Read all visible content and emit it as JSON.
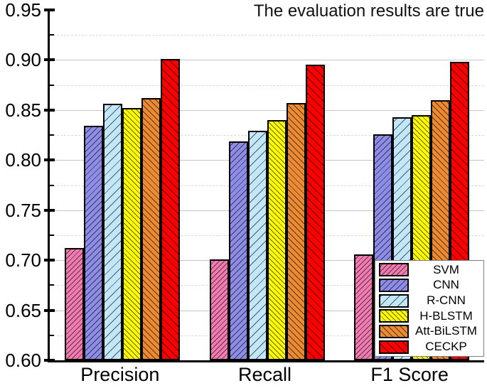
{
  "chart_data": {
    "type": "bar",
    "title": "The evaluation results are true",
    "categories": [
      "Precision",
      "Recall",
      "F1 Score"
    ],
    "series": [
      {
        "name": "SVM",
        "color": "#F27CB1",
        "hatch": "/",
        "hatch_gap": 5,
        "values": [
          0.712,
          0.701,
          0.706
        ]
      },
      {
        "name": "CNN",
        "color": "#8D8DE8",
        "hatch": "/",
        "hatch_gap": 6,
        "values": [
          0.834,
          0.819,
          0.826
        ]
      },
      {
        "name": "R-CNN",
        "color": "#C2E7F9",
        "hatch": "/",
        "hatch_gap": 9,
        "values": [
          0.856,
          0.829,
          0.843
        ]
      },
      {
        "name": "H-BLSTM",
        "color": "#FFFF00",
        "hatch": "\\",
        "hatch_gap": 5,
        "values": [
          0.852,
          0.84,
          0.845
        ]
      },
      {
        "name": "Att-BiLSTM",
        "color": "#EC8B33",
        "hatch": "\\",
        "hatch_gap": 6,
        "values": [
          0.862,
          0.857,
          0.86
        ]
      },
      {
        "name": "CECKP",
        "color": "#FA0000",
        "hatch": "\\",
        "hatch_gap": 8,
        "values": [
          0.901,
          0.895,
          0.898
        ]
      }
    ],
    "ylim": [
      0.6,
      0.95
    ],
    "y_tick_labels": [
      "0.60",
      "0.65",
      "0.70",
      "0.75",
      "0.80",
      "0.85",
      "0.90",
      "0.95"
    ],
    "y_major_step": 0.05,
    "y_minor_step": 0.025,
    "grid": "major solid, minor dashed",
    "legend_position": "lower right",
    "legend_labels": [
      "SVM",
      "CNN",
      "R-CNN",
      "H-BLSTM",
      "Att-BiLSTM",
      "CECKP"
    ]
  },
  "colors": {
    "grid_major": "#c6c6c6",
    "grid_minor": "#d9d9d9",
    "axis": "#000000",
    "background": "#ffffff"
  }
}
